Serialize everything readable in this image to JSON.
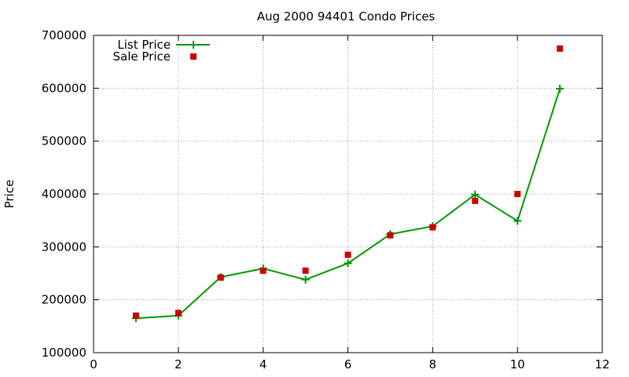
{
  "chart_data": {
    "type": "line",
    "title": "Aug 2000 94401 Condo Prices",
    "xlabel": "",
    "ylabel": "Price",
    "xlim": [
      0,
      12
    ],
    "ylim": [
      100000,
      700000
    ],
    "xticks": [
      0,
      2,
      4,
      6,
      8,
      10,
      12
    ],
    "yticks": [
      100000,
      200000,
      300000,
      400000,
      500000,
      600000,
      700000
    ],
    "grid": true,
    "legend_position": "top-left",
    "series": [
      {
        "name": "List Price",
        "style": "line+cross",
        "color": "#009900",
        "x": [
          1,
          2,
          3,
          4,
          5,
          6,
          7,
          8,
          9,
          10,
          11
        ],
        "y": [
          165000,
          170000,
          243000,
          259000,
          238000,
          269000,
          324000,
          339000,
          399000,
          349000,
          599000
        ]
      },
      {
        "name": "Sale Price",
        "style": "square",
        "color": "#cc0000",
        "x": [
          1,
          2,
          3,
          4,
          5,
          6,
          7,
          8,
          9,
          10,
          11
        ],
        "y": [
          170000,
          175000,
          242000,
          255000,
          255000,
          285000,
          322000,
          337000,
          387000,
          400000,
          675000
        ]
      }
    ]
  }
}
